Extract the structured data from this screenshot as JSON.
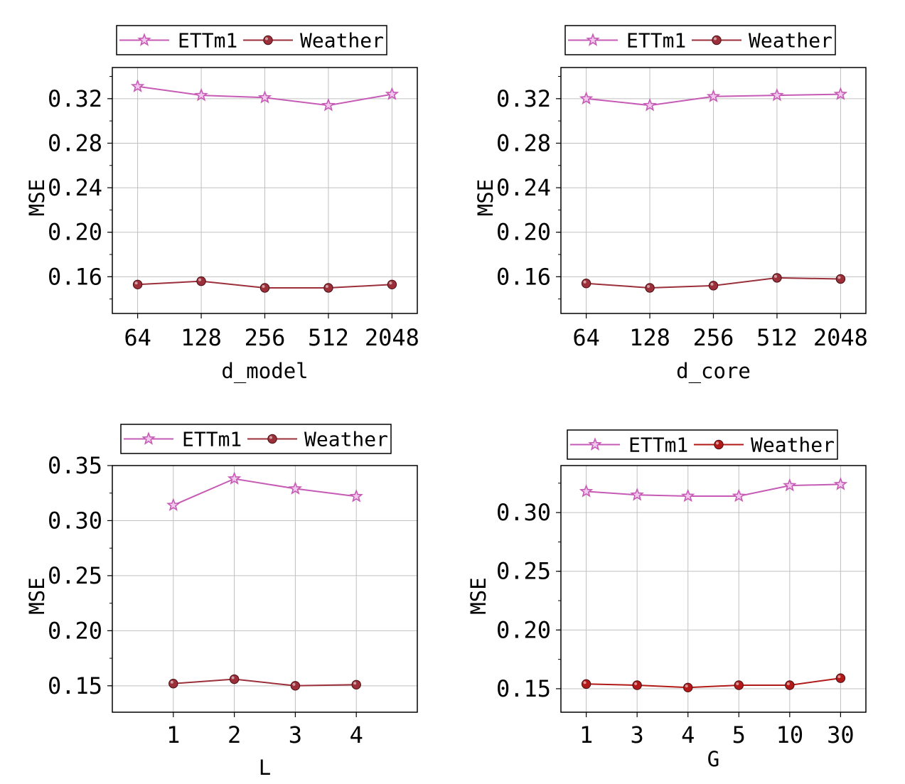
{
  "colors": {
    "ettm1": "#c65bb5",
    "weather": "#9b2f3a",
    "weather_alt": "#b21a1a",
    "grid": "#c0c0c0",
    "frame": "#000000"
  },
  "chart_data": [
    {
      "type": "line",
      "categories": [
        "64",
        "128",
        "256",
        "512",
        "2048"
      ],
      "xlabel": "d_model",
      "ylabel": "MSE",
      "ylim": [
        0.127,
        0.348
      ],
      "yticks": [
        0.16,
        0.2,
        0.24,
        0.28,
        0.32
      ],
      "ytick_labels": [
        "0.16",
        "0.20",
        "0.24",
        "0.28",
        "0.32"
      ],
      "grid": true,
      "legend": "top",
      "series": [
        {
          "name": "ETTm1",
          "marker": "star",
          "color": "ettm1",
          "values": [
            0.331,
            0.323,
            0.321,
            0.314,
            0.324
          ]
        },
        {
          "name": "Weather",
          "marker": "ball",
          "color": "weather",
          "values": [
            0.153,
            0.156,
            0.15,
            0.15,
            0.153
          ]
        }
      ]
    },
    {
      "type": "line",
      "categories": [
        "64",
        "128",
        "256",
        "512",
        "2048"
      ],
      "xlabel": "d_core",
      "ylabel": "MSE",
      "ylim": [
        0.127,
        0.348
      ],
      "yticks": [
        0.16,
        0.2,
        0.24,
        0.28,
        0.32
      ],
      "ytick_labels": [
        "0.16",
        "0.20",
        "0.24",
        "0.28",
        "0.32"
      ],
      "grid": true,
      "legend": "top",
      "series": [
        {
          "name": "ETTm1",
          "marker": "star",
          "color": "ettm1",
          "values": [
            0.32,
            0.314,
            0.322,
            0.323,
            0.324
          ]
        },
        {
          "name": "Weather",
          "marker": "ball",
          "color": "weather",
          "values": [
            0.154,
            0.15,
            0.152,
            0.159,
            0.158
          ]
        }
      ]
    },
    {
      "type": "line",
      "categories": [
        "1",
        "2",
        "3",
        "4"
      ],
      "xlabel": "L",
      "ylabel": "MSE",
      "ylim": [
        0.126,
        0.35
      ],
      "xrange": [
        0,
        5
      ],
      "yticks": [
        0.15,
        0.2,
        0.25,
        0.3,
        0.35
      ],
      "ytick_labels": [
        "0.15",
        "0.20",
        "0.25",
        "0.30",
        "0.35"
      ],
      "grid": true,
      "legend": "top",
      "series": [
        {
          "name": "ETTm1",
          "marker": "star",
          "color": "ettm1",
          "values": [
            0.314,
            0.338,
            0.329,
            0.322
          ]
        },
        {
          "name": "Weather",
          "marker": "ball",
          "color": "weather",
          "values": [
            0.152,
            0.156,
            0.15,
            0.151
          ]
        }
      ]
    },
    {
      "type": "line",
      "categories": [
        "1",
        "3",
        "4",
        "5",
        "10",
        "30"
      ],
      "xlabel": "G",
      "ylabel": "MSE",
      "ylim": [
        0.13,
        0.34
      ],
      "yticks": [
        0.15,
        0.2,
        0.25,
        0.3
      ],
      "ytick_labels": [
        "0.15",
        "0.20",
        "0.25",
        "0.30"
      ],
      "grid": true,
      "legend": "top",
      "series": [
        {
          "name": "ETTm1",
          "marker": "star",
          "color": "ettm1",
          "values": [
            0.318,
            0.315,
            0.314,
            0.314,
            0.323,
            0.324
          ]
        },
        {
          "name": "Weather",
          "marker": "ball",
          "color": "weather_alt",
          "values": [
            0.154,
            0.153,
            0.151,
            0.153,
            0.153,
            0.159
          ]
        }
      ]
    }
  ]
}
